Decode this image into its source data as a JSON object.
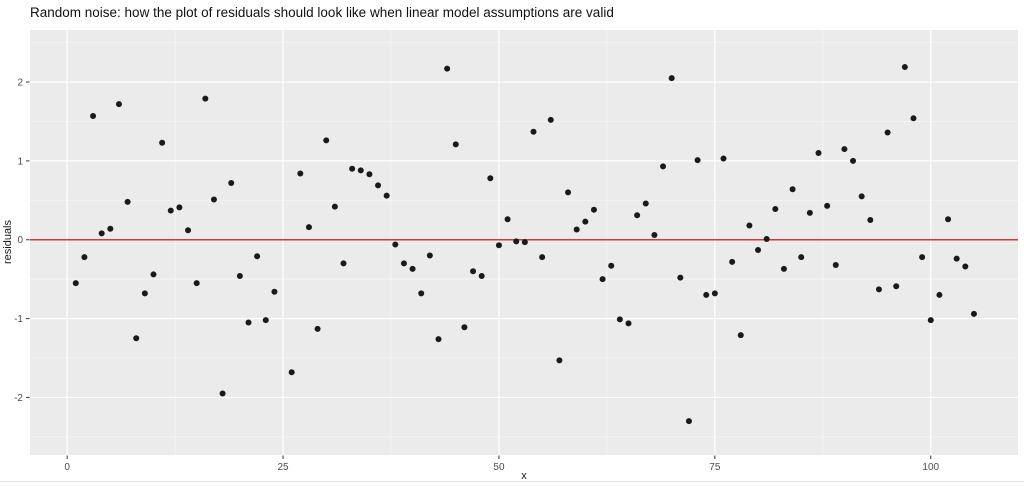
{
  "page": {
    "title": "Random noise: how the plot of residuals should look like when linear model assumptions are valid"
  },
  "chart_data": {
    "type": "scatter",
    "title": "Random noise: how the plot of residuals should look like when linear model assumptions are valid",
    "xlabel": "x",
    "ylabel": "residuals",
    "xlim": [
      -4.3,
      110.1
    ],
    "ylim": [
      -2.73,
      2.66
    ],
    "x_ticks": [
      0,
      25,
      50,
      75,
      100
    ],
    "y_ticks": [
      -2,
      -1,
      0,
      1,
      2
    ],
    "x_minor_gridlines": [
      12.5,
      37.5,
      62.5,
      87.5
    ],
    "y_minor_gridlines": [
      -2.5,
      -1.5,
      -0.5,
      0.5,
      1.5,
      2.5
    ],
    "grid": "on",
    "legend": "none",
    "reference_line": {
      "y": 0
    },
    "colors": {
      "panel_bg": "#ebebeb",
      "grid_major": "#ffffff",
      "grid_minor": "#f5f5f5",
      "point": "#1a1a1a",
      "refline": "#cf3a3a",
      "tick_mark": "#333333",
      "tick_label": "#4d4d4d",
      "axis_title": "#1a1a1a",
      "title": "#111111"
    },
    "points": [
      [
        1,
        -0.55
      ],
      [
        2,
        -0.22
      ],
      [
        3,
        1.57
      ],
      [
        4,
        0.08
      ],
      [
        5,
        0.14
      ],
      [
        6,
        1.72
      ],
      [
        7,
        0.48
      ],
      [
        8,
        -1.25
      ],
      [
        9,
        -0.68
      ],
      [
        10,
        -0.44
      ],
      [
        11,
        1.23
      ],
      [
        12,
        0.37
      ],
      [
        13,
        0.41
      ],
      [
        14,
        0.12
      ],
      [
        15,
        -0.55
      ],
      [
        16,
        1.79
      ],
      [
        17,
        0.51
      ],
      [
        18,
        -1.95
      ],
      [
        19,
        0.72
      ],
      [
        20,
        -0.46
      ],
      [
        21,
        -1.05
      ],
      [
        22,
        -0.21
      ],
      [
        23,
        -1.02
      ],
      [
        24,
        -0.66
      ],
      [
        26,
        -1.68
      ],
      [
        27,
        0.84
      ],
      [
        28,
        0.16
      ],
      [
        29,
        -1.13
      ],
      [
        30,
        1.26
      ],
      [
        31,
        0.42
      ],
      [
        32,
        -0.3
      ],
      [
        33,
        0.9
      ],
      [
        34,
        0.88
      ],
      [
        35,
        0.83
      ],
      [
        36,
        0.69
      ],
      [
        37,
        0.56
      ],
      [
        38,
        -0.06
      ],
      [
        39,
        -0.3
      ],
      [
        40,
        -0.37
      ],
      [
        41,
        -0.68
      ],
      [
        42,
        -0.2
      ],
      [
        43,
        -1.26
      ],
      [
        44,
        2.17
      ],
      [
        45,
        1.21
      ],
      [
        46,
        -1.11
      ],
      [
        47,
        -0.4
      ],
      [
        48,
        -0.46
      ],
      [
        49,
        0.78
      ],
      [
        50,
        -0.07
      ],
      [
        51,
        0.26
      ],
      [
        52,
        -0.02
      ],
      [
        53,
        -0.03
      ],
      [
        54,
        1.37
      ],
      [
        55,
        -0.22
      ],
      [
        56,
        1.52
      ],
      [
        57,
        -1.53
      ],
      [
        58,
        0.6
      ],
      [
        59,
        0.13
      ],
      [
        60,
        0.23
      ],
      [
        61,
        0.38
      ],
      [
        62,
        -0.5
      ],
      [
        63,
        -0.33
      ],
      [
        64,
        -1.01
      ],
      [
        65,
        -1.06
      ],
      [
        66,
        0.31
      ],
      [
        67,
        0.46
      ],
      [
        68,
        0.06
      ],
      [
        69,
        0.93
      ],
      [
        70,
        2.05
      ],
      [
        71,
        -0.48
      ],
      [
        72,
        -2.3
      ],
      [
        73,
        1.01
      ],
      [
        74,
        -0.7
      ],
      [
        75,
        -0.68
      ],
      [
        76,
        1.03
      ],
      [
        77,
        -0.28
      ],
      [
        78,
        -1.21
      ],
      [
        79,
        0.18
      ],
      [
        80,
        -0.13
      ],
      [
        81,
        0.01
      ],
      [
        82,
        0.39
      ],
      [
        83,
        -0.37
      ],
      [
        84,
        0.64
      ],
      [
        85,
        -0.22
      ],
      [
        86,
        0.34
      ],
      [
        87,
        1.1
      ],
      [
        88,
        0.43
      ],
      [
        89,
        -0.32
      ],
      [
        90,
        1.15
      ],
      [
        91,
        1.0
      ],
      [
        92,
        0.55
      ],
      [
        93,
        0.25
      ],
      [
        94,
        -0.63
      ],
      [
        95,
        1.36
      ],
      [
        96,
        -0.59
      ],
      [
        97,
        2.19
      ],
      [
        98,
        1.54
      ],
      [
        99,
        -0.22
      ],
      [
        100,
        -1.02
      ],
      [
        101,
        -0.7
      ],
      [
        102,
        0.26
      ],
      [
        103,
        -0.24
      ],
      [
        104,
        -0.34
      ],
      [
        105,
        -0.94
      ]
    ]
  }
}
